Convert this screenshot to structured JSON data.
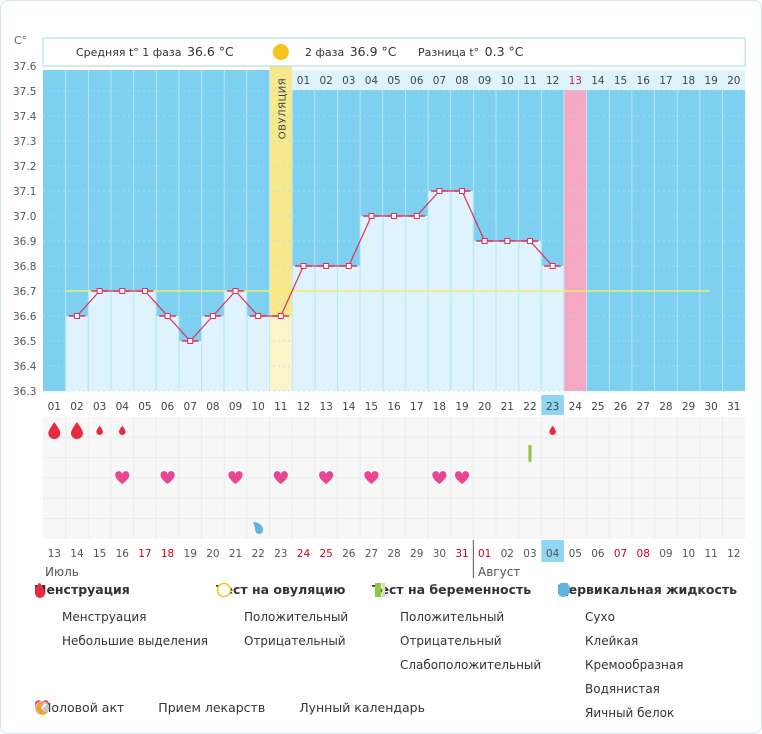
{
  "chart_data": {
    "type": "line",
    "title": "",
    "ylabel": "C°",
    "ylim": [
      36.3,
      37.6
    ],
    "yticks": [
      "36.3",
      "36.4",
      "36.5",
      "36.6",
      "36.7",
      "36.8",
      "36.9",
      "37.0",
      "37.1",
      "37.2",
      "37.3",
      "37.4",
      "37.5",
      "37.6"
    ],
    "cycle_days": [
      "01",
      "02",
      "03",
      "04",
      "05",
      "06",
      "07",
      "08",
      "09",
      "10",
      "11",
      "12",
      "13",
      "14",
      "15",
      "16",
      "17",
      "18",
      "19",
      "20",
      "21",
      "22",
      "23",
      "24",
      "25",
      "26",
      "27",
      "28",
      "29",
      "30",
      "31"
    ],
    "phase2_days": [
      "01",
      "02",
      "03",
      "04",
      "05",
      "06",
      "07",
      "08",
      "09",
      "10",
      "11",
      "12",
      "13",
      "14",
      "15",
      "16",
      "17",
      "18",
      "19",
      "20"
    ],
    "dates": [
      "13",
      "14",
      "15",
      "16",
      "17",
      "18",
      "19",
      "20",
      "21",
      "22",
      "23",
      "24",
      "25",
      "26",
      "27",
      "28",
      "29",
      "30",
      "31",
      "01",
      "02",
      "03",
      "04",
      "05",
      "06",
      "07",
      "08",
      "09",
      "10",
      "11",
      "12"
    ],
    "date_colors": [
      "#555",
      "#555",
      "#555",
      "#555",
      "#d0021b",
      "#d0021b",
      "#555",
      "#555",
      "#555",
      "#555",
      "#555",
      "#d0021b",
      "#d0021b",
      "#555",
      "#555",
      "#555",
      "#555",
      "#555",
      "#d0021b",
      "#d0021b",
      "#555",
      "#555",
      "#555",
      "#555",
      "#555",
      "#d0021b",
      "#d0021b",
      "#555",
      "#555",
      "#555",
      "#555"
    ],
    "months": [
      "Июль",
      "Август"
    ],
    "temperatures": [
      null,
      36.6,
      36.7,
      36.7,
      36.7,
      36.6,
      36.5,
      36.6,
      36.7,
      36.6,
      36.6,
      36.8,
      36.8,
      36.8,
      37.0,
      37.0,
      37.0,
      37.1,
      37.1,
      36.9,
      36.9,
      36.9,
      36.8
    ],
    "coverline": 36.7,
    "ovulation_day": 11,
    "ovulation_label": "ОВУЛЯЦИЯ",
    "today_day": 23,
    "expected_period_day": 24,
    "menstruation": {
      "1": "heavy",
      "2": "heavy",
      "3": "light",
      "4": "light",
      "23": "light"
    },
    "pregnancy_test_day": 22,
    "intercourse_days": [
      4,
      6,
      9,
      11,
      13,
      15,
      18,
      19
    ],
    "cervical_fluid": {
      "10": "creamy"
    },
    "colors": {
      "sky": "#7dd0ef",
      "bar": "#dff3fc",
      "line": "#e0305a",
      "ovulation": "#f7e88e",
      "period": "#f6a8c2",
      "coverline": "#f2ee6a",
      "today": "#8ed6f2",
      "heart": "#ea4592"
    }
  },
  "header": {
    "phase1_label": "Средняя t° 1 фаза",
    "phase1_value": "36.6 °C",
    "phase2_label": "2 фаза",
    "phase2_value": "36.9 °C",
    "diff_label": "Разница t°",
    "diff_value": "0.3 °C"
  },
  "legend": {
    "menstruation": {
      "title": "Менструация",
      "items": [
        "Менструация",
        "Небольшие выделения"
      ]
    },
    "ovulation_test": {
      "title": "Тест на овуляцию",
      "items": [
        "Положительный",
        "Отрицательный"
      ]
    },
    "pregnancy_test": {
      "title": "Тест на беременность",
      "items": [
        "Положительный",
        "Отрицательный",
        "Слабоположительный"
      ]
    },
    "cervical": {
      "title": "Цервикальная жидкость",
      "items": [
        "Сухо",
        "Клейкая",
        "Кремообразная",
        "Водянистая",
        "Яичный белок"
      ]
    },
    "other": [
      "Половой акт",
      "Прием лекарств",
      "Лунный календарь"
    ]
  }
}
